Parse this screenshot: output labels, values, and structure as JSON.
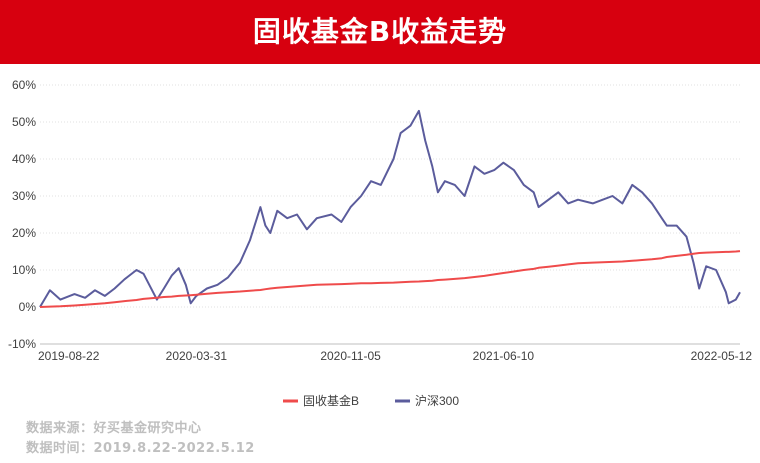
{
  "header": {
    "title": "固收基金B收益走势"
  },
  "footer": {
    "source": "数据来源：好买基金研究中心",
    "period": "数据时间：2019.8.22-2022.5.12"
  },
  "colors": {
    "banner": "#d7000f",
    "series_fund": "#ef4b4b",
    "series_index": "#5b5c9c"
  },
  "chart_data": {
    "type": "line",
    "title": "固收基金B收益走势",
    "xlabel": "",
    "ylabel": "",
    "ylim": [
      -10,
      60
    ],
    "yticks": [
      "-10%",
      "0%",
      "10%",
      "20%",
      "30%",
      "40%",
      "50%",
      "60%"
    ],
    "x_tick_labels": [
      "2019-08-22",
      "2020-03-31",
      "2020-11-05",
      "2021-06-10",
      "2022-05-12"
    ],
    "grid": true,
    "legend": "bottom",
    "x": [
      "2019-08-22",
      "2019-09-05",
      "2019-09-20",
      "2019-10-10",
      "2019-10-25",
      "2019-11-08",
      "2019-11-22",
      "2019-12-06",
      "2019-12-20",
      "2020-01-06",
      "2020-01-16",
      "2020-02-04",
      "2020-02-14",
      "2020-02-25",
      "2020-03-06",
      "2020-03-16",
      "2020-03-23",
      "2020-03-31",
      "2020-04-15",
      "2020-04-30",
      "2020-05-15",
      "2020-06-01",
      "2020-06-15",
      "2020-06-30",
      "2020-07-07",
      "2020-07-14",
      "2020-07-24",
      "2020-08-07",
      "2020-08-21",
      "2020-09-04",
      "2020-09-18",
      "2020-10-09",
      "2020-10-23",
      "2020-11-05",
      "2020-11-20",
      "2020-12-04",
      "2020-12-18",
      "2021-01-05",
      "2021-01-15",
      "2021-01-29",
      "2021-02-10",
      "2021-02-19",
      "2021-03-01",
      "2021-03-09",
      "2021-03-19",
      "2021-04-02",
      "2021-04-16",
      "2021-04-30",
      "2021-05-14",
      "2021-05-28",
      "2021-06-10",
      "2021-06-25",
      "2021-07-09",
      "2021-07-23",
      "2021-07-30",
      "2021-08-13",
      "2021-08-27",
      "2021-09-10",
      "2021-09-24",
      "2021-10-15",
      "2021-10-29",
      "2021-11-12",
      "2021-11-26",
      "2021-12-10",
      "2021-12-24",
      "2022-01-07",
      "2022-01-21",
      "2022-01-28",
      "2022-02-11",
      "2022-02-25",
      "2022-03-07",
      "2022-03-15",
      "2022-03-25",
      "2022-04-08",
      "2022-04-22",
      "2022-04-26",
      "2022-05-06",
      "2022-05-12"
    ],
    "series": [
      {
        "name": "固收基金B",
        "values": [
          0,
          0.1,
          0.2,
          0.4,
          0.6,
          0.8,
          1.0,
          1.3,
          1.6,
          1.9,
          2.2,
          2.5,
          2.7,
          2.8,
          3.0,
          3.1,
          3.2,
          3.3,
          3.6,
          3.8,
          4.0,
          4.2,
          4.4,
          4.6,
          4.8,
          5.0,
          5.2,
          5.4,
          5.6,
          5.8,
          6.0,
          6.1,
          6.2,
          6.3,
          6.4,
          6.4,
          6.5,
          6.6,
          6.7,
          6.8,
          6.9,
          7.0,
          7.1,
          7.3,
          7.4,
          7.6,
          7.8,
          8.1,
          8.4,
          8.8,
          9.2,
          9.6,
          10.0,
          10.3,
          10.6,
          10.9,
          11.2,
          11.5,
          11.8,
          12.0,
          12.1,
          12.2,
          12.3,
          12.5,
          12.7,
          12.9,
          13.2,
          13.5,
          13.8,
          14.1,
          14.4,
          14.6,
          14.7,
          14.8,
          14.9,
          14.9,
          15.0,
          15.1
        ]
      },
      {
        "name": "沪深300",
        "values": [
          0,
          4.5,
          2.0,
          3.5,
          2.5,
          4.5,
          3.0,
          5.0,
          7.5,
          10.0,
          9.0,
          2.0,
          5.0,
          8.5,
          10.5,
          6.0,
          1.0,
          3.0,
          5.0,
          6.0,
          8.0,
          12.0,
          18.0,
          27.0,
          22.0,
          20.0,
          26.0,
          24.0,
          25.0,
          21.0,
          24.0,
          25.0,
          23.0,
          27.0,
          30.0,
          34.0,
          33.0,
          40.0,
          47.0,
          49.0,
          53.0,
          45.0,
          38.0,
          31.0,
          34.0,
          33.0,
          30.0,
          38.0,
          36.0,
          37.0,
          39.0,
          37.0,
          33.0,
          31.0,
          27.0,
          29.0,
          31.0,
          28.0,
          29.0,
          28.0,
          29.0,
          30.0,
          28.0,
          33.0,
          31.0,
          28.0,
          24.0,
          22.0,
          22.0,
          19.0,
          12.0,
          5.0,
          11.0,
          10.0,
          4.0,
          1.0,
          2.0,
          4.0
        ]
      }
    ]
  }
}
